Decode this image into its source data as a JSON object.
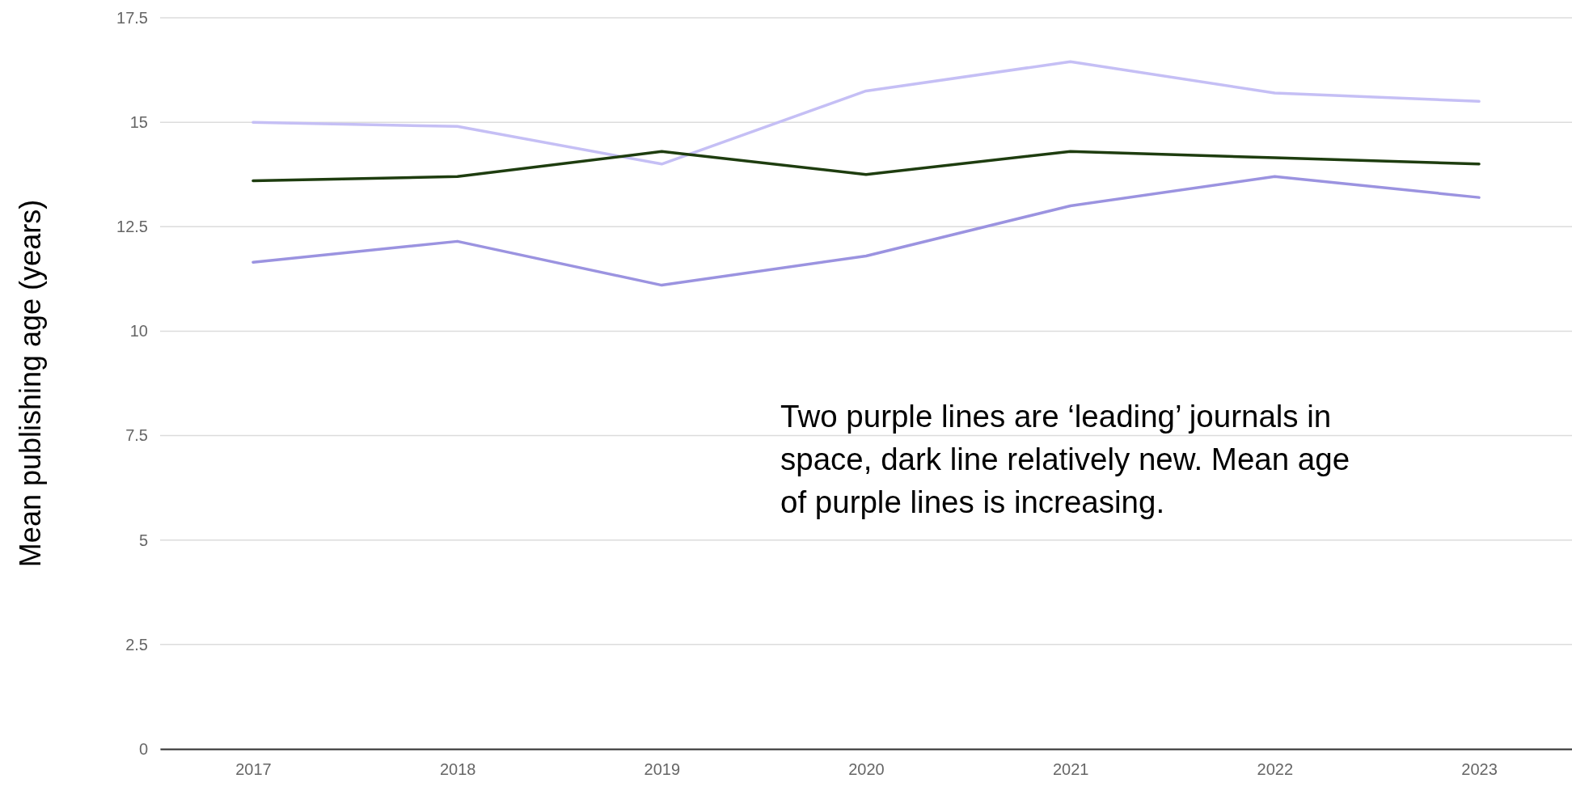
{
  "chart_data": {
    "type": "line",
    "ylabel": "Mean publishing age (years)",
    "categories": [
      "2017",
      "2018",
      "2019",
      "2020",
      "2021",
      "2022",
      "2023"
    ],
    "series": [
      {
        "color": "#c5bff5",
        "values": [
          15.0,
          14.9,
          14.0,
          15.75,
          16.45,
          15.7,
          15.5
        ]
      },
      {
        "color": "#1e3d0f",
        "values": [
          13.6,
          13.7,
          14.3,
          13.75,
          14.3,
          14.15,
          14.0
        ]
      },
      {
        "color": "#9b93e0",
        "values": [
          11.65,
          12.15,
          11.1,
          11.8,
          13.0,
          13.7,
          13.2
        ]
      }
    ],
    "ylim": [
      0,
      17.5
    ],
    "yticks": [
      0,
      2.5,
      5,
      7.5,
      10,
      12.5,
      15,
      17.5
    ],
    "grid": "y",
    "marker": "none",
    "line_style": "solid",
    "annotations": [
      "Two purple lines are ‘leading’ journals in space, dark line relatively new. Mean age of purple lines is increasing."
    ]
  }
}
